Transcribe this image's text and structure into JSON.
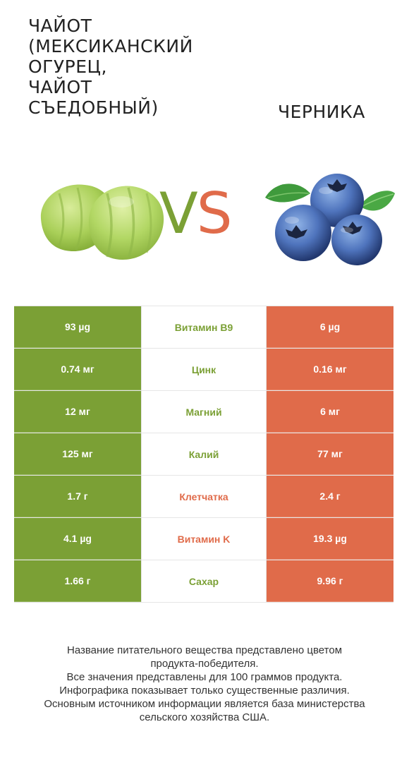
{
  "header": {
    "left_title_lines": [
      "ЧАЙОТ",
      "(МЕКСИКАНСКИЙ",
      "ОГУРЕЦ,",
      "ЧАЙОТ",
      "СЪЕДОБНЫЙ)"
    ],
    "right_title": "ЧЕРНИКА",
    "vs_v": "V",
    "vs_s": "S"
  },
  "colors": {
    "left_winner": "#7ba035",
    "right_winner": "#e06b4a"
  },
  "images": {
    "left_icon": "chayote-icon",
    "right_icon": "blueberry-icon"
  },
  "rows": [
    {
      "left": "93 µg",
      "nutrient": "Витамин B9",
      "right": "6 µg",
      "winner": "left"
    },
    {
      "left": "0.74 мг",
      "nutrient": "Цинк",
      "right": "0.16 мг",
      "winner": "left"
    },
    {
      "left": "12 мг",
      "nutrient": "Магний",
      "right": "6 мг",
      "winner": "left"
    },
    {
      "left": "125 мг",
      "nutrient": "Калий",
      "right": "77 мг",
      "winner": "left"
    },
    {
      "left": "1.7 г",
      "nutrient": "Клетчатка",
      "right": "2.4 г",
      "winner": "right"
    },
    {
      "left": "4.1 µg",
      "nutrient": "Витамин K",
      "right": "19.3 µg",
      "winner": "right"
    },
    {
      "left": "1.66 г",
      "nutrient": "Сахар",
      "right": "9.96 г",
      "winner": "left"
    }
  ],
  "footer": {
    "lines": [
      "Название питательного вещества представлено цветом",
      "продукта-победителя.",
      "Все значения представлены для 100 граммов продукта.",
      "Инфографика показывает только существенные различия.",
      "Основным источником информации является база министерства",
      "сельского хозяйства США."
    ]
  }
}
